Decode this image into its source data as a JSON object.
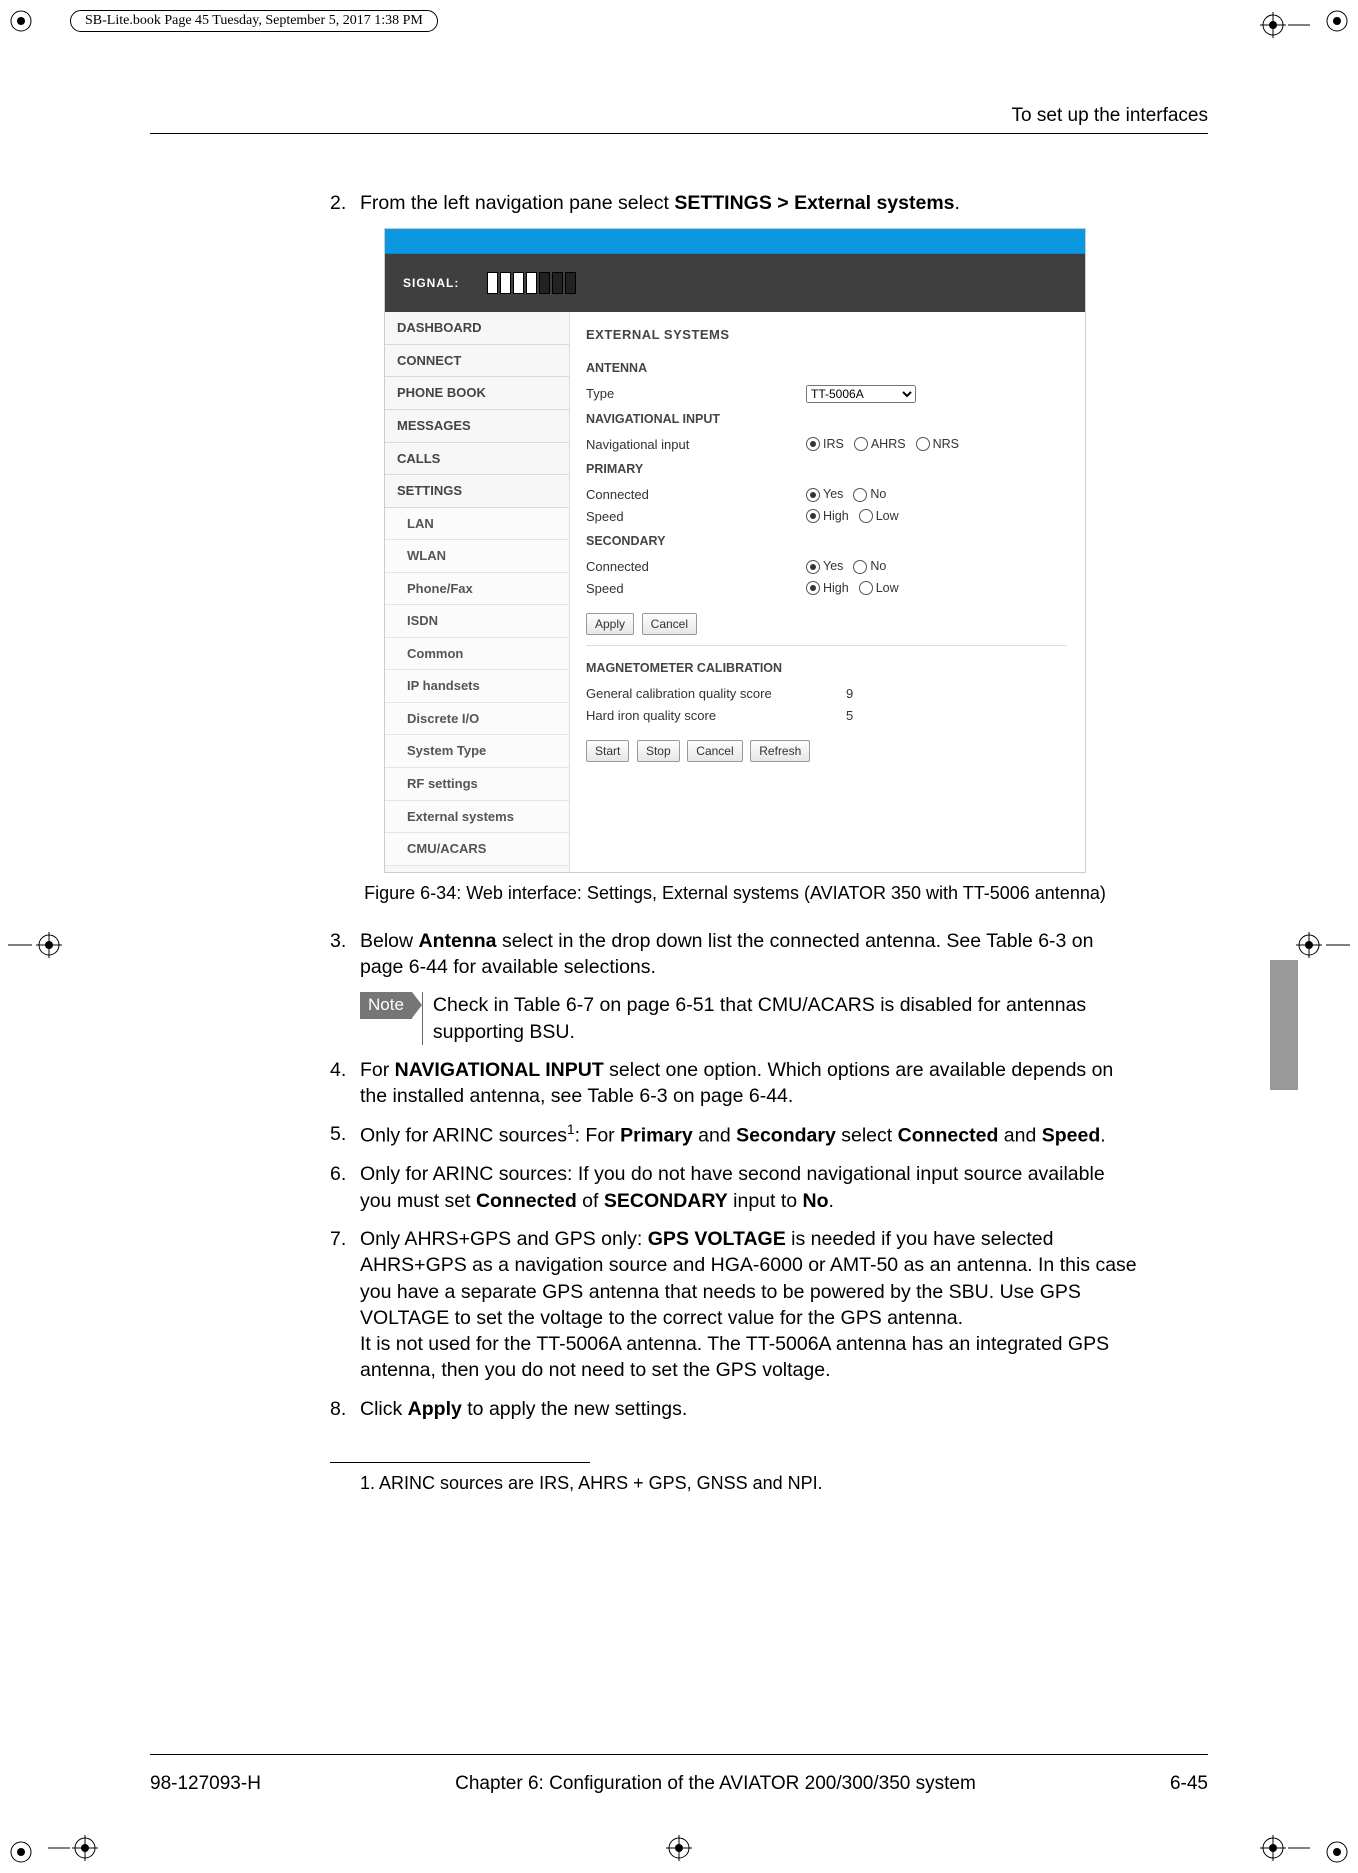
{
  "print_header": "SB-Lite.book  Page 45  Tuesday, September 5, 2017  1:38 PM",
  "running_head": "To set up the interfaces",
  "steps": {
    "s2_num": "2.",
    "s2_a": "From the left navigation pane select ",
    "s2_b": "SETTINGS > External systems",
    "s2_c": ".",
    "fig_caption": "Figure 6-34: Web interface: Settings, External systems (AVIATOR 350 with TT-5006 antenna)",
    "s3_num": "3.",
    "s3_a": "Below ",
    "s3_b": "Antenna",
    "s3_c": " select in the drop down list the connected antenna. See Table 6-3 on page 6-44 for available selections.",
    "note_label": "Note",
    "note_text": "Check in Table 6-7 on page 6-51 that CMU/ACARS is disabled for antennas supporting BSU.",
    "s4_num": "4.",
    "s4_a": "For ",
    "s4_b": "NAVIGATIONAL INPUT",
    "s4_c": " select one option. Which options are available depends on the installed antenna, see Table 6-3 on page 6-44.",
    "s5_num": "5.",
    "s5_a": "Only for ARINC sources",
    "s5_sup": "1",
    "s5_b": ": For ",
    "s5_c": "Primary",
    "s5_d": " and ",
    "s5_e": "Secondary",
    "s5_f": " select ",
    "s5_g": "Connected",
    "s5_h": " and ",
    "s5_i": "Speed",
    "s5_j": ".",
    "s6_num": "6.",
    "s6_a": "Only for ARINC sources: If you do not have second navigational input source available you must set ",
    "s6_b": "Connected",
    "s6_c": " of ",
    "s6_d": "SECONDARY",
    "s6_e": " input to ",
    "s6_f": "No",
    "s6_g": ".",
    "s7_num": "7.",
    "s7_a": "Only AHRS+GPS and GPS only: ",
    "s7_b": "GPS VOLTAGE",
    "s7_c": " is needed if you have selected AHRS+GPS as a navigation source and HGA-6000 or AMT-50 as an antenna. In this case you have a separate GPS antenna that needs to be powered by the SBU. Use GPS VOLTAGE to set the voltage to the correct value for the GPS antenna.",
    "s7_d": "It is not used for the TT-5006A antenna. The TT-5006A antenna has an integrated GPS antenna, then you do not need to set the GPS voltage.",
    "s8_num": "8.",
    "s8_a": "Click ",
    "s8_b": "Apply",
    "s8_c": " to apply the new settings."
  },
  "footnote": "1.   ARINC sources are IRS, AHRS + GPS, GNSS and NPI.",
  "footer": {
    "left": "98-127093-H",
    "center": "Chapter 6:  Configuration of the AVIATOR 200/300/350 system",
    "right": "6-45"
  },
  "webshot": {
    "signal_label": "SIGNAL:",
    "signal_on": 4,
    "signal_total": 7,
    "nav": {
      "main": [
        "DASHBOARD",
        "CONNECT",
        "PHONE BOOK",
        "MESSAGES",
        "CALLS",
        "SETTINGS"
      ],
      "sub": [
        "LAN",
        "WLAN",
        "Phone/Fax",
        "ISDN",
        "Common",
        "IP handsets",
        "Discrete I/O",
        "System Type",
        "RF settings",
        "External systems",
        "CMU/ACARS"
      ]
    },
    "title": "EXTERNAL SYSTEMS",
    "antenna_h": "ANTENNA",
    "type_lbl": "Type",
    "type_val": "TT-5006A",
    "nav_h": "NAVIGATIONAL INPUT",
    "nav_lbl": "Navigational input",
    "nav_opts": [
      "IRS",
      "AHRS",
      "NRS"
    ],
    "prim_h": "PRIMARY",
    "sec_h": "SECONDARY",
    "connected_lbl": "Connected",
    "speed_lbl": "Speed",
    "yes": "Yes",
    "no": "No",
    "high": "High",
    "low": "Low",
    "btn_apply": "Apply",
    "btn_cancel": "Cancel",
    "mag_h": "MAGNETOMETER CALIBRATION",
    "mag_r1_lbl": "General calibration quality score",
    "mag_r1_val": "9",
    "mag_r2_lbl": "Hard iron quality score",
    "mag_r2_val": "5",
    "btn_start": "Start",
    "btn_stop": "Stop",
    "btn_cancel2": "Cancel",
    "btn_refresh": "Refresh"
  }
}
